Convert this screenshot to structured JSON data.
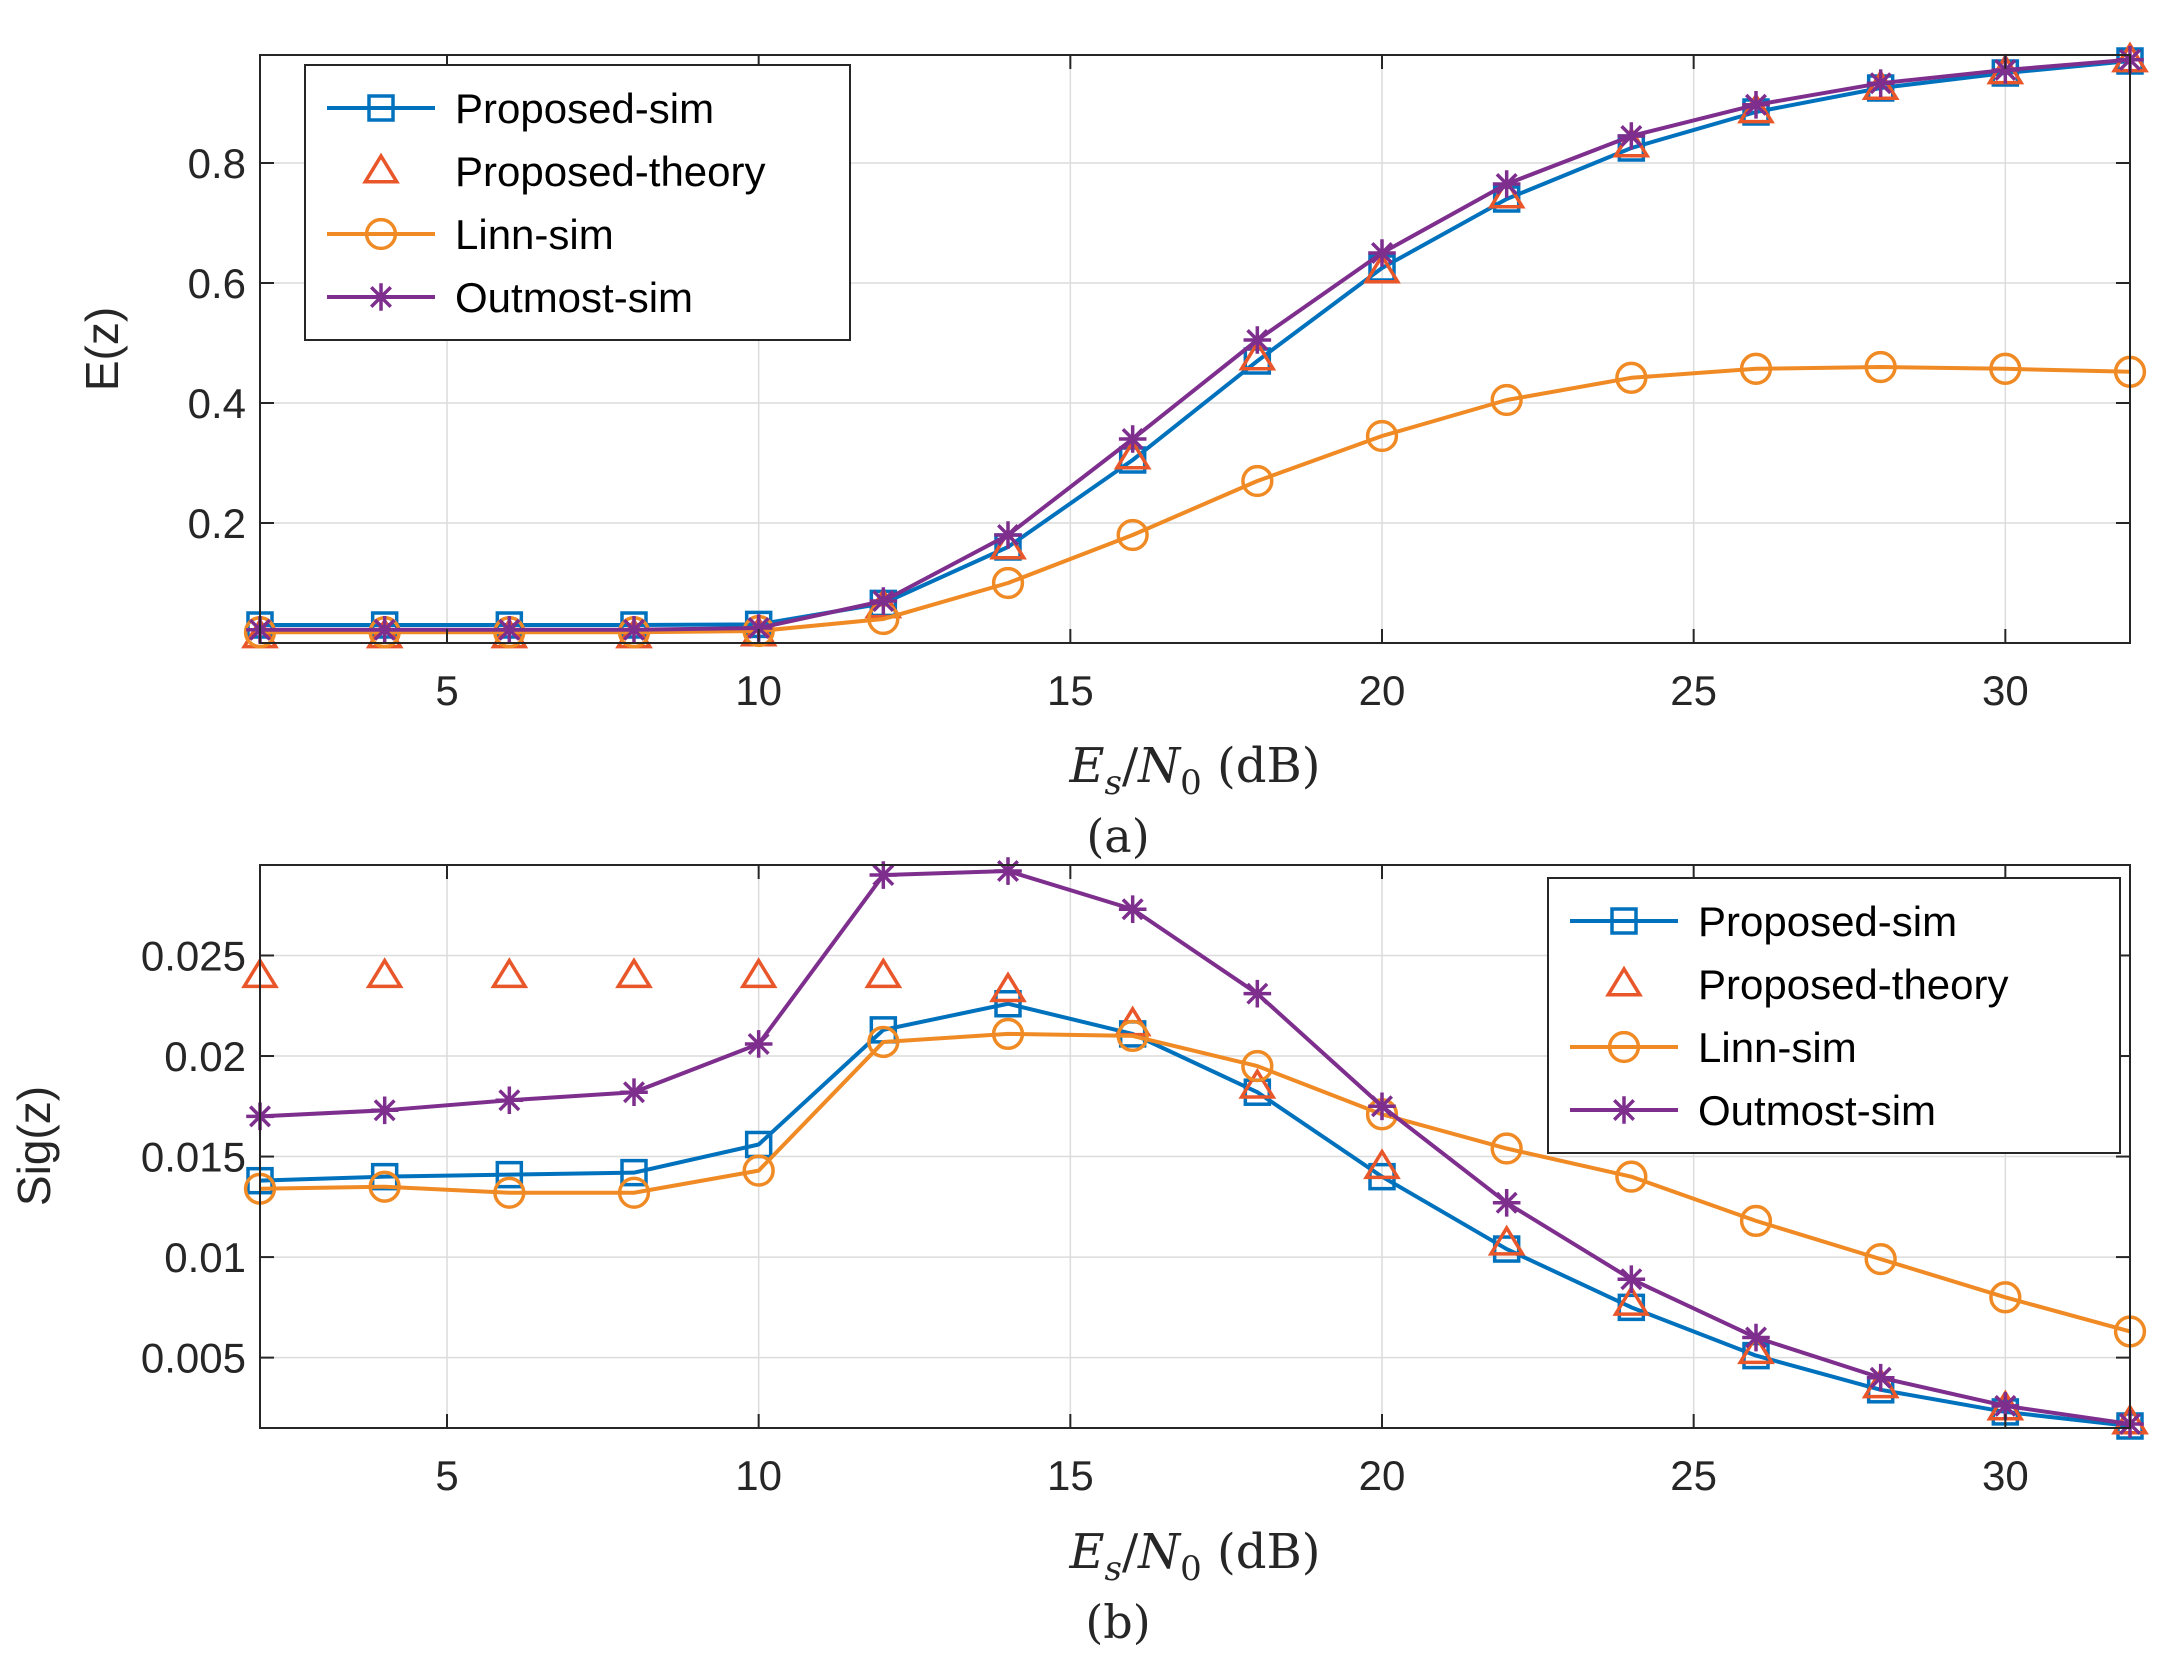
{
  "chart_data": [
    {
      "type": "line",
      "title": "",
      "caption": "(a)",
      "ylabel": "E(z)",
      "xlabel": {
        "base_E": "E",
        "sub_s": "s",
        "slash": "/",
        "base_N": "N",
        "sub_0": "0",
        "unit": " (dB)"
      },
      "xlim": [
        2,
        32
      ],
      "ylim": [
        0,
        0.98
      ],
      "xticks": [
        5,
        10,
        15,
        20,
        25,
        30
      ],
      "yticks": [
        0.2,
        0.4,
        0.6,
        0.8
      ],
      "ytick_labels": [
        "0.2",
        "0.4",
        "0.6",
        "0.8"
      ],
      "grid": true,
      "legend_position": "top-left",
      "x": [
        2,
        4,
        6,
        8,
        10,
        12,
        14,
        16,
        18,
        20,
        22,
        24,
        26,
        28,
        30,
        32
      ],
      "series": [
        {
          "name": "Proposed-sim",
          "color": "#0072BD",
          "marker": "square",
          "line": true,
          "values": [
            0.03,
            0.03,
            0.03,
            0.03,
            0.031,
            0.066,
            0.16,
            0.305,
            0.47,
            0.625,
            0.74,
            0.825,
            0.885,
            0.925,
            0.95,
            0.97
          ]
        },
        {
          "name": "Proposed-theory",
          "color": "#D95319",
          "marker": "triangle",
          "line": false,
          "values": [
            0.012,
            0.012,
            0.012,
            0.012,
            0.015,
            0.062,
            0.16,
            0.31,
            0.475,
            0.62,
            0.745,
            0.83,
            0.887,
            0.926,
            0.952,
            0.972
          ]
        },
        {
          "name": "Linn-sim",
          "color": "#EDB120",
          "marker": "circle",
          "line": true,
          "stroke": "#F08A24",
          "values": [
            0.018,
            0.018,
            0.018,
            0.018,
            0.02,
            0.04,
            0.1,
            0.18,
            0.27,
            0.345,
            0.405,
            0.442,
            0.457,
            0.46,
            0.457,
            0.452
          ]
        },
        {
          "name": "Outmost-sim",
          "color": "#7E2F8E",
          "marker": "star",
          "line": true,
          "values": [
            0.022,
            0.022,
            0.022,
            0.022,
            0.025,
            0.07,
            0.18,
            0.34,
            0.505,
            0.65,
            0.765,
            0.845,
            0.897,
            0.933,
            0.955,
            0.972
          ]
        }
      ]
    },
    {
      "type": "line",
      "title": "",
      "caption": "(b)",
      "ylabel": "Sig(z)",
      "xlabel": {
        "base_E": "E",
        "sub_s": "s",
        "slash": "/",
        "base_N": "N",
        "sub_0": "0",
        "unit": " (dB)"
      },
      "xlim": [
        2,
        32
      ],
      "ylim": [
        0.0015,
        0.0295
      ],
      "xticks": [
        5,
        10,
        15,
        20,
        25,
        30
      ],
      "yticks": [
        0.005,
        0.01,
        0.015,
        0.02,
        0.025
      ],
      "ytick_labels": [
        "0.005",
        "0.01",
        "0.015",
        "0.02",
        "0.025"
      ],
      "grid": true,
      "legend_position": "top-right",
      "x": [
        2,
        4,
        6,
        8,
        10,
        12,
        14,
        16,
        18,
        20,
        22,
        24,
        26,
        28,
        30,
        32
      ],
      "series": [
        {
          "name": "Proposed-sim",
          "color": "#0072BD",
          "marker": "square",
          "line": true,
          "values": [
            0.0138,
            0.014,
            0.0141,
            0.0142,
            0.0156,
            0.0213,
            0.0226,
            0.0211,
            0.0182,
            0.014,
            0.0104,
            0.0075,
            0.0051,
            0.0034,
            0.0023,
            0.0016
          ]
        },
        {
          "name": "Proposed-theory",
          "color": "#D95319",
          "marker": "triangle",
          "line": false,
          "values": [
            0.024,
            0.024,
            0.024,
            0.024,
            0.024,
            0.024,
            0.0233,
            0.0216,
            0.0185,
            0.0145,
            0.0107,
            0.0077,
            0.0053,
            0.0036,
            0.0025,
            0.0018
          ]
        },
        {
          "name": "Linn-sim",
          "color": "#EDB120",
          "marker": "circle",
          "line": true,
          "stroke": "#F08A24",
          "values": [
            0.0134,
            0.0135,
            0.0132,
            0.0132,
            0.0143,
            0.0207,
            0.0211,
            0.021,
            0.0195,
            0.0171,
            0.0154,
            0.014,
            0.0118,
            0.0099,
            0.008,
            0.0063
          ]
        },
        {
          "name": "Outmost-sim",
          "color": "#7E2F8E",
          "marker": "star",
          "line": true,
          "values": [
            0.017,
            0.0173,
            0.0178,
            0.0182,
            0.0206,
            0.029,
            0.0292,
            0.0273,
            0.0231,
            0.0175,
            0.0127,
            0.0089,
            0.006,
            0.004,
            0.0026,
            0.0017
          ]
        }
      ]
    }
  ]
}
